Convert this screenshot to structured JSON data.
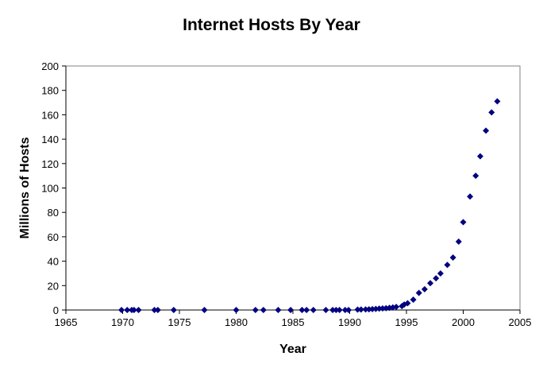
{
  "chart_data": {
    "type": "scatter",
    "title": "Internet Hosts By Year",
    "xlabel": "Year",
    "ylabel": "Millions of Hosts",
    "xlim": [
      1965,
      2005
    ],
    "ylim": [
      0,
      200
    ],
    "xticks": [
      1965,
      1970,
      1975,
      1980,
      1985,
      1990,
      1995,
      2000,
      2005
    ],
    "yticks": [
      0,
      20,
      40,
      60,
      80,
      100,
      120,
      140,
      160,
      180,
      200
    ],
    "grid": false,
    "legend": "none",
    "marker_color": "#000080",
    "series": [
      {
        "x": [
          1969.9,
          1970.4,
          1970.8,
          1971.0,
          1971.4,
          1972.8,
          1973.1,
          1974.5,
          1977.2,
          1980.0,
          1981.7,
          1982.4,
          1983.7,
          1984.8,
          1985.8,
          1986.2,
          1986.8,
          1987.9,
          1988.5,
          1988.8,
          1989.1,
          1989.6,
          1989.9,
          1990.7,
          1991.0,
          1991.4,
          1991.7,
          1992.0,
          1992.3,
          1992.6,
          1992.9,
          1993.2,
          1993.5,
          1993.8,
          1994.1,
          1994.6,
          1994.8,
          1995.1,
          1995.6,
          1996.1,
          1996.6,
          1997.1,
          1997.6,
          1998.0,
          1998.6,
          1999.1,
          1999.6,
          2000.0,
          2000.6,
          2001.1,
          2001.5,
          2002.0,
          2002.5,
          2003.0
        ],
        "y": [
          0,
          0,
          0,
          0,
          0,
          0,
          0,
          0,
          0,
          0,
          0,
          0,
          0,
          0,
          0,
          0,
          0,
          0,
          0,
          0,
          0,
          0,
          0,
          0.3,
          0.4,
          0.5,
          0.6,
          0.7,
          0.9,
          1.1,
          1.3,
          1.5,
          1.8,
          2.1,
          2.5,
          3.2,
          4.5,
          5.5,
          8.5,
          14,
          17,
          22,
          26,
          30,
          37,
          43,
          56,
          72,
          93,
          110,
          126,
          147,
          162,
          171
        ]
      }
    ]
  }
}
